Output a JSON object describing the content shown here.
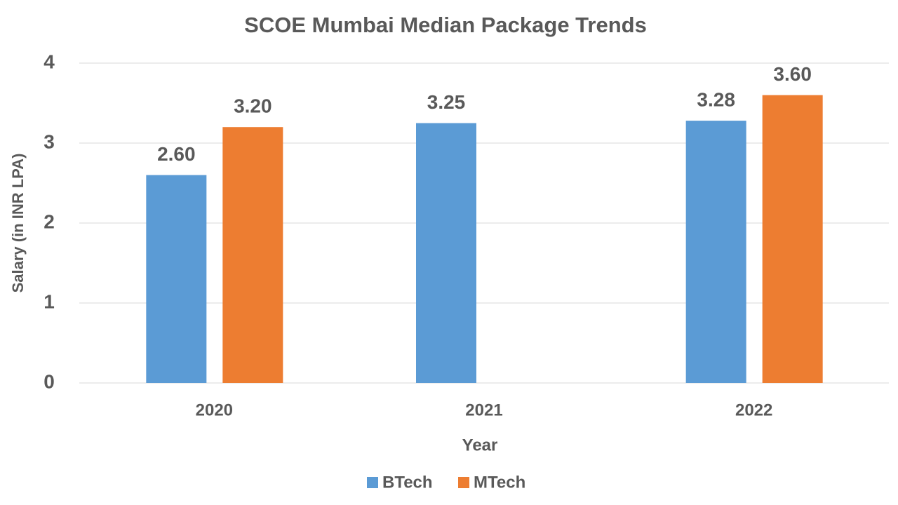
{
  "chart_data": {
    "type": "bar",
    "title": "SCOE Mumbai Median Package Trends",
    "x_label": "Year",
    "y_label": "Salary (in INR LPA)",
    "categories": [
      "2020",
      "2021",
      "2022"
    ],
    "series": [
      {
        "name": "BTech",
        "color": "#5b9bd5",
        "values": [
          2.6,
          3.25,
          3.28
        ],
        "value_labels": [
          "2.60",
          "3.25",
          "3.28"
        ]
      },
      {
        "name": "MTech",
        "color": "#ed7d31",
        "values": [
          3.2,
          null,
          3.6
        ],
        "value_labels": [
          "3.20",
          null,
          "3.60"
        ]
      }
    ],
    "ylim": [
      0,
      4
    ],
    "yticks": [
      0,
      1,
      2,
      3,
      4
    ],
    "grid": true,
    "legend": "bottom"
  }
}
